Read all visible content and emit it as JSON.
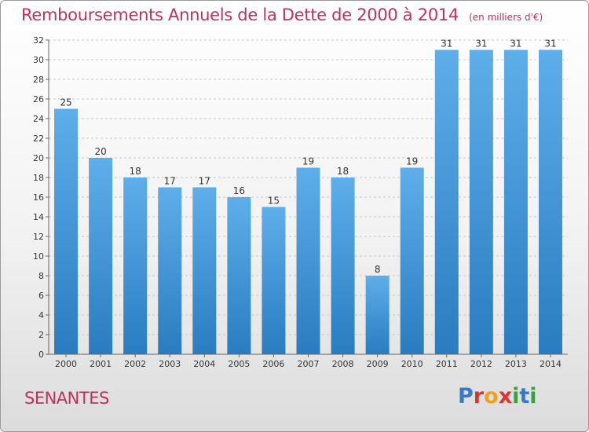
{
  "chart_data": {
    "type": "bar",
    "title": "Remboursements Annuels de la Dette de 2000 à 2014",
    "unit": "(en milliers d'€)",
    "categories": [
      "2000",
      "2001",
      "2002",
      "2003",
      "2004",
      "2005",
      "2006",
      "2007",
      "2008",
      "2009",
      "2010",
      "2011",
      "2012",
      "2013",
      "2014"
    ],
    "values": [
      25,
      20,
      18,
      17,
      17,
      16,
      15,
      19,
      18,
      8,
      19,
      31,
      31,
      31,
      31
    ],
    "ylim": [
      0,
      32
    ],
    "yticks": [
      0,
      2,
      4,
      6,
      8,
      10,
      12,
      14,
      16,
      18,
      20,
      22,
      24,
      26,
      28,
      30,
      32
    ],
    "grid": true,
    "legend": "none",
    "xlabel": "",
    "ylabel": ""
  },
  "commune": "SENANTES",
  "logo": {
    "text": "Proxiti",
    "letter_colors": [
      "#3a78c8",
      "#e0332f",
      "#f0a020",
      "#e0332f",
      "#3aa040",
      "#3a78c8",
      "#3aa040"
    ]
  },
  "colors": {
    "title": "#c0305a",
    "bar_top": "#5eaeea",
    "bar_bottom": "#2a7cc0",
    "grid": "#c8c8c8",
    "axis": "#666666"
  }
}
